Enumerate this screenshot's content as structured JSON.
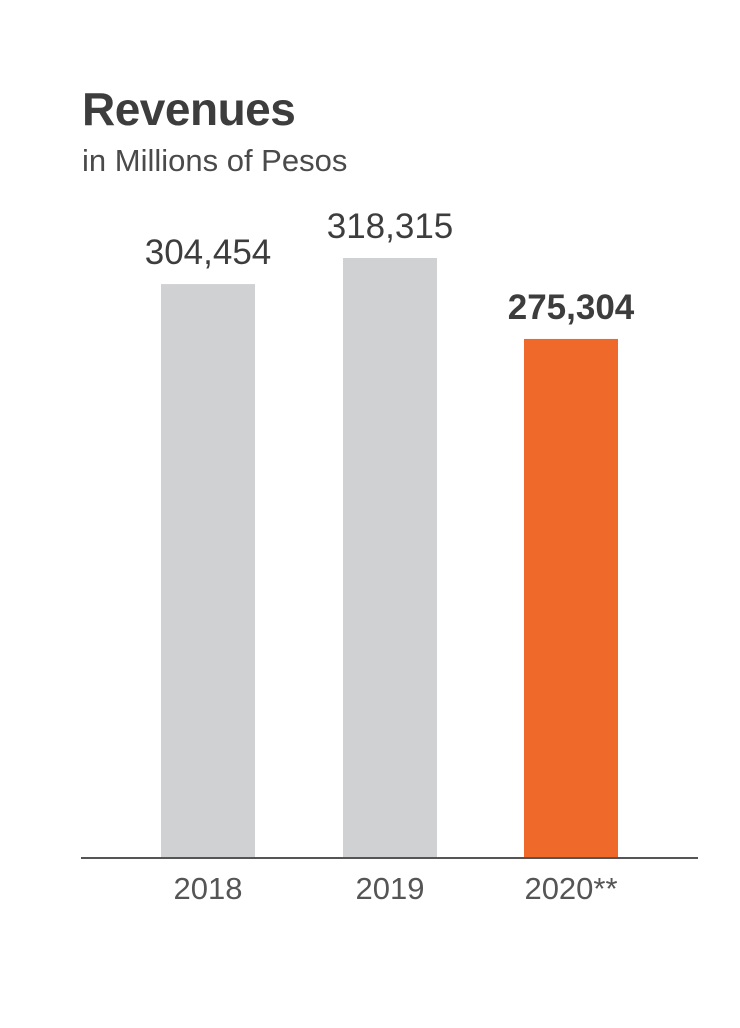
{
  "header": {
    "title": "Revenues",
    "subtitle": "in Millions of Pesos"
  },
  "colors": {
    "bar_default": "#d0d1d3",
    "bar_highlight": "#ef6a2a",
    "axis": "#555555",
    "text": "#3d3d3d"
  },
  "chart_data": {
    "type": "bar",
    "title": "Revenues",
    "subtitle": "in Millions of Pesos",
    "categories": [
      "2018",
      "2019",
      "2020**"
    ],
    "values": [
      304454,
      318315,
      275304
    ],
    "value_labels": [
      "304,454",
      "318,315",
      "275,304"
    ],
    "highlight_index": 2,
    "xlabel": "",
    "ylabel": "",
    "ylim": [
      0,
      318315
    ],
    "grid": false,
    "legend": "none"
  }
}
